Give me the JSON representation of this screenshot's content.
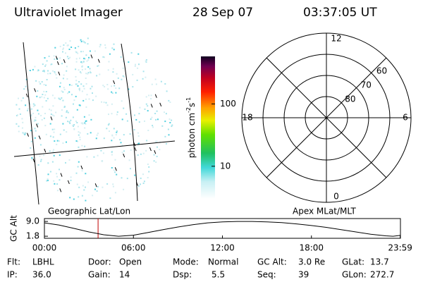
{
  "header": {
    "title": "Ultraviolet Imager",
    "date": "28 Sep 07",
    "time": "03:37:05 UT"
  },
  "image_panel": {
    "label": "Geographic Lat/Lon"
  },
  "colorbar": {
    "label": [
      "photon cm",
      "-2",
      "s",
      "-1"
    ],
    "scale": "log",
    "lim": [
      3,
      580
    ],
    "ticks": [
      10,
      100
    ]
  },
  "polar": {
    "label": "Apex MLat/MLT",
    "lat_lim": [
      90,
      50
    ],
    "lat_labels": [
      60,
      70,
      80
    ],
    "mlt_labels": [
      12,
      18,
      6,
      0
    ]
  },
  "altitude": {
    "label": "GC Alt",
    "xlim": [
      0,
      24
    ],
    "ylim": [
      0.8,
      10.4
    ],
    "yticks": [
      {
        "value": 9.0,
        "label": "9.0"
      },
      {
        "value": 1.8,
        "label": "1.8"
      }
    ],
    "xticks": [
      {
        "value": 0,
        "label": "00:00"
      },
      {
        "value": 6,
        "label": "06:00"
      },
      {
        "value": 12,
        "label": "12:00"
      },
      {
        "value": 18,
        "label": "18:00"
      },
      {
        "value": 23.983,
        "label": "23:59"
      }
    ],
    "x": [
      0,
      1,
      2,
      3,
      4,
      5,
      6,
      7,
      8,
      9,
      10,
      11,
      12,
      13,
      14,
      15,
      16,
      17,
      18,
      19,
      20,
      21,
      22,
      23,
      23.5,
      23.983
    ],
    "values": [
      8.3,
      7.2,
      5.6,
      3.9,
      2.5,
      1.8,
      2.3,
      3.6,
      5.0,
      6.3,
      7.4,
      8.3,
      8.8,
      9.0,
      9.0,
      8.8,
      8.4,
      7.8,
      7.0,
      6.1,
      5.0,
      3.9,
      2.8,
      2.0,
      1.8,
      2.2
    ],
    "marker": 3.617,
    "line_color": "#000000",
    "marker_color": "#c00000"
  },
  "info": [
    [
      {
        "label": "Flt:",
        "value": "LBHL"
      },
      {
        "label": "Door:",
        "value": "Open"
      },
      {
        "label": "Mode:",
        "value": "Normal"
      },
      {
        "label": "GC Alt:",
        "value": "3.0 Re"
      },
      {
        "label": "GLat:",
        "value": "13.7"
      }
    ],
    [
      {
        "label": "IP:",
        "value": "36.0"
      },
      {
        "label": "Gain:",
        "value": "14"
      },
      {
        "label": "Dsp:",
        "value": "5.5"
      },
      {
        "label": "Seq:",
        "value": "39"
      },
      {
        "label": "GLon:",
        "value": "272.7"
      }
    ]
  ]
}
